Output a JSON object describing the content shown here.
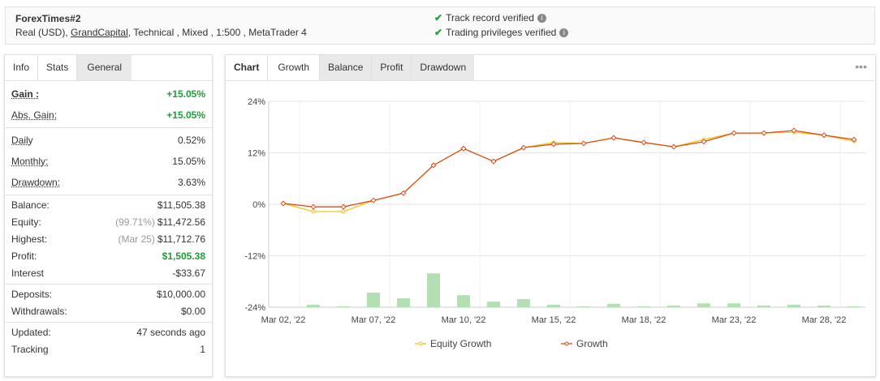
{
  "header": {
    "title": "ForexTimes#2",
    "details_prefix": "Real (USD),",
    "broker": "GrandCapital",
    "details_suffix": ", Technical , Mixed , 1:500 , MetaTrader 4",
    "verified": [
      "Track record verified",
      "Trading privileges verified"
    ]
  },
  "left_tabs": [
    "Info",
    "Stats",
    "General"
  ],
  "stats": [
    [
      {
        "label": "Gain :",
        "value": "+15.05%",
        "color": "#1f9d35"
      },
      {
        "label": "Abs. Gain:",
        "value": "+15.05%",
        "color": "#1f9d35"
      }
    ],
    [
      {
        "label": "Daily",
        "value": "0.52%"
      },
      {
        "label": "Monthly:",
        "value": "15.05%"
      },
      {
        "label": "Drawdown:",
        "value": "3.63%"
      }
    ],
    [
      {
        "label": "Balance:",
        "value": "$11,505.38"
      },
      {
        "label": "Equity:",
        "note": "(99.71%)",
        "value": "$11,472.56"
      },
      {
        "label": "Highest:",
        "note": "(Mar 25)",
        "value": "$11,712.76"
      },
      {
        "label": "Profit:",
        "value": "$1,505.38",
        "color": "#1f9d35"
      },
      {
        "label": "Interest",
        "value": "-$33.67"
      }
    ],
    [
      {
        "label": "Deposits:",
        "value": "$10,000.00"
      },
      {
        "label": "Withdrawals:",
        "value": "$0.00"
      }
    ],
    [
      {
        "label": "Updated:",
        "value": "47 seconds ago"
      },
      {
        "label": "Tracking",
        "value": "1"
      }
    ]
  ],
  "chart_tabs": [
    "Chart",
    "Growth",
    "Balance",
    "Profit",
    "Drawdown"
  ],
  "chart_data": {
    "type": "line",
    "categories": [
      "Mar 02, '22",
      null,
      null,
      "Mar 07, '22",
      null,
      null,
      "Mar 10, '22",
      null,
      null,
      "Mar 15, '22",
      null,
      null,
      "Mar 18, '22",
      null,
      null,
      "Mar 23, '22",
      null,
      null,
      "Mar 28, '22",
      null
    ],
    "series": [
      {
        "name": "Equity Growth",
        "color": "#f2c318",
        "values": [
          0.2,
          -1.7,
          -1.7,
          0.9,
          2.6,
          9.1,
          13.0,
          10.0,
          13.2,
          14.4,
          14.2,
          15.5,
          14.4,
          13.4,
          15.1,
          16.6,
          16.6,
          16.8,
          16.1,
          14.7
        ]
      },
      {
        "name": "Growth",
        "color": "#dd4b1a",
        "values": [
          0.2,
          -0.6,
          -0.6,
          0.9,
          2.6,
          9.1,
          13.0,
          10.0,
          13.2,
          14.0,
          14.2,
          15.5,
          14.4,
          13.4,
          14.6,
          16.6,
          16.6,
          17.2,
          16.1,
          15.1
        ]
      }
    ],
    "bars": {
      "color": "#b3e0b3",
      "values": [
        null,
        0.6,
        0.2,
        3.4,
        2.1,
        7.9,
        2.8,
        1.3,
        1.9,
        0.6,
        0.2,
        0.8,
        0.2,
        0.4,
        0.9,
        0.9,
        0.4,
        0.6,
        0.4,
        0.2
      ]
    },
    "ylim": [
      -24,
      24
    ],
    "yticks": [
      {
        "value": 24,
        "label": "24%"
      },
      {
        "value": 12,
        "label": "12%"
      },
      {
        "value": 0,
        "label": "0%"
      },
      {
        "value": -12,
        "label": "-12%"
      },
      {
        "value": -24,
        "label": "-24%"
      }
    ],
    "grid": true
  }
}
